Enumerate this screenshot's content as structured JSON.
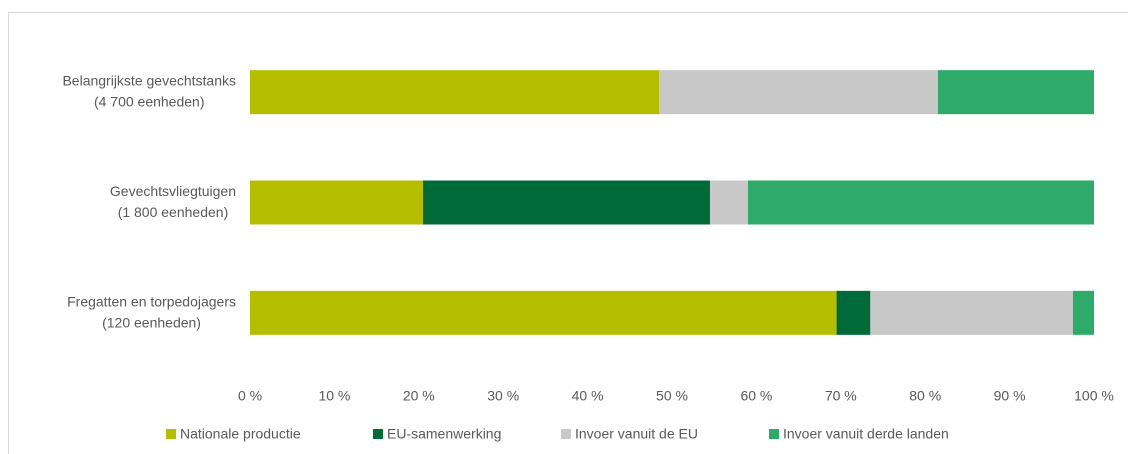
{
  "chart_data": {
    "type": "stacked-barh",
    "categories": [
      "Belangrijkste gevechtstanks\n(4 700 eenheden)",
      "Gevechtsvliegtuigen\n(1 800 eenheden)",
      "Fregatten en torpedojagers\n(120 eenheden)"
    ],
    "series": [
      {
        "name": "Nationale productie",
        "color": "#b5bd00",
        "values": [
          48.5,
          20.5,
          69.5
        ]
      },
      {
        "name": "EU-samenwerking",
        "color": "#006a38",
        "values": [
          0,
          34,
          4
        ]
      },
      {
        "name": "Invoer vanuit de EU",
        "color": "#c8c8c8",
        "values": [
          33,
          4.5,
          24
        ]
      },
      {
        "name": "Invoer vanuit derde landen",
        "color": "#2eaa69",
        "values": [
          18.5,
          41,
          2.5
        ]
      }
    ],
    "xlim": [
      0,
      100
    ],
    "xticks": [
      {
        "value": 0,
        "label": "0 %"
      },
      {
        "value": 10,
        "label": "10 %"
      },
      {
        "value": 20,
        "label": "20 %"
      },
      {
        "value": 30,
        "label": "30 %"
      },
      {
        "value": 40,
        "label": "40 %"
      },
      {
        "value": 50,
        "label": "50 %"
      },
      {
        "value": 60,
        "label": "60 %"
      },
      {
        "value": 70,
        "label": "70 %"
      },
      {
        "value": 80,
        "label": "80 %"
      },
      {
        "value": 90,
        "label": "90 %"
      },
      {
        "value": 100,
        "label": "100 %"
      }
    ],
    "legend": "bottom"
  }
}
